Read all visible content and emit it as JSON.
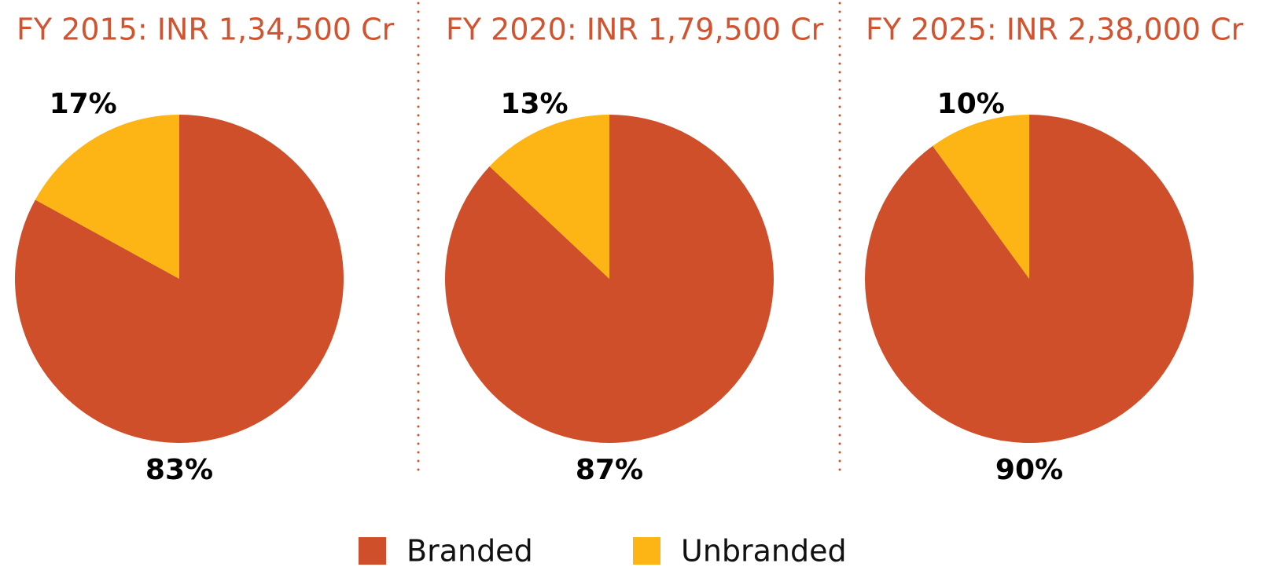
{
  "chart_data": [
    {
      "type": "pie",
      "title": "FY 2015: INR 1,34,500 Cr",
      "categories": [
        "Branded",
        "Unbranded"
      ],
      "values": [
        83,
        17
      ],
      "value_labels": [
        "83%",
        "17%"
      ],
      "colors": [
        "#cf4f2b",
        "#fdb515"
      ]
    },
    {
      "type": "pie",
      "title": "FY 2020: INR 1,79,500 Cr",
      "categories": [
        "Branded",
        "Unbranded"
      ],
      "values": [
        87,
        13
      ],
      "value_labels": [
        "87%",
        "13%"
      ],
      "colors": [
        "#cf4f2b",
        "#fdb515"
      ]
    },
    {
      "type": "pie",
      "title": "FY 2025: INR 2,38,000 Cr",
      "categories": [
        "Branded",
        "Unbranded"
      ],
      "values": [
        90,
        10
      ],
      "value_labels": [
        "90%",
        "10%"
      ],
      "colors": [
        "#cf4f2b",
        "#fdb515"
      ]
    }
  ]
}
